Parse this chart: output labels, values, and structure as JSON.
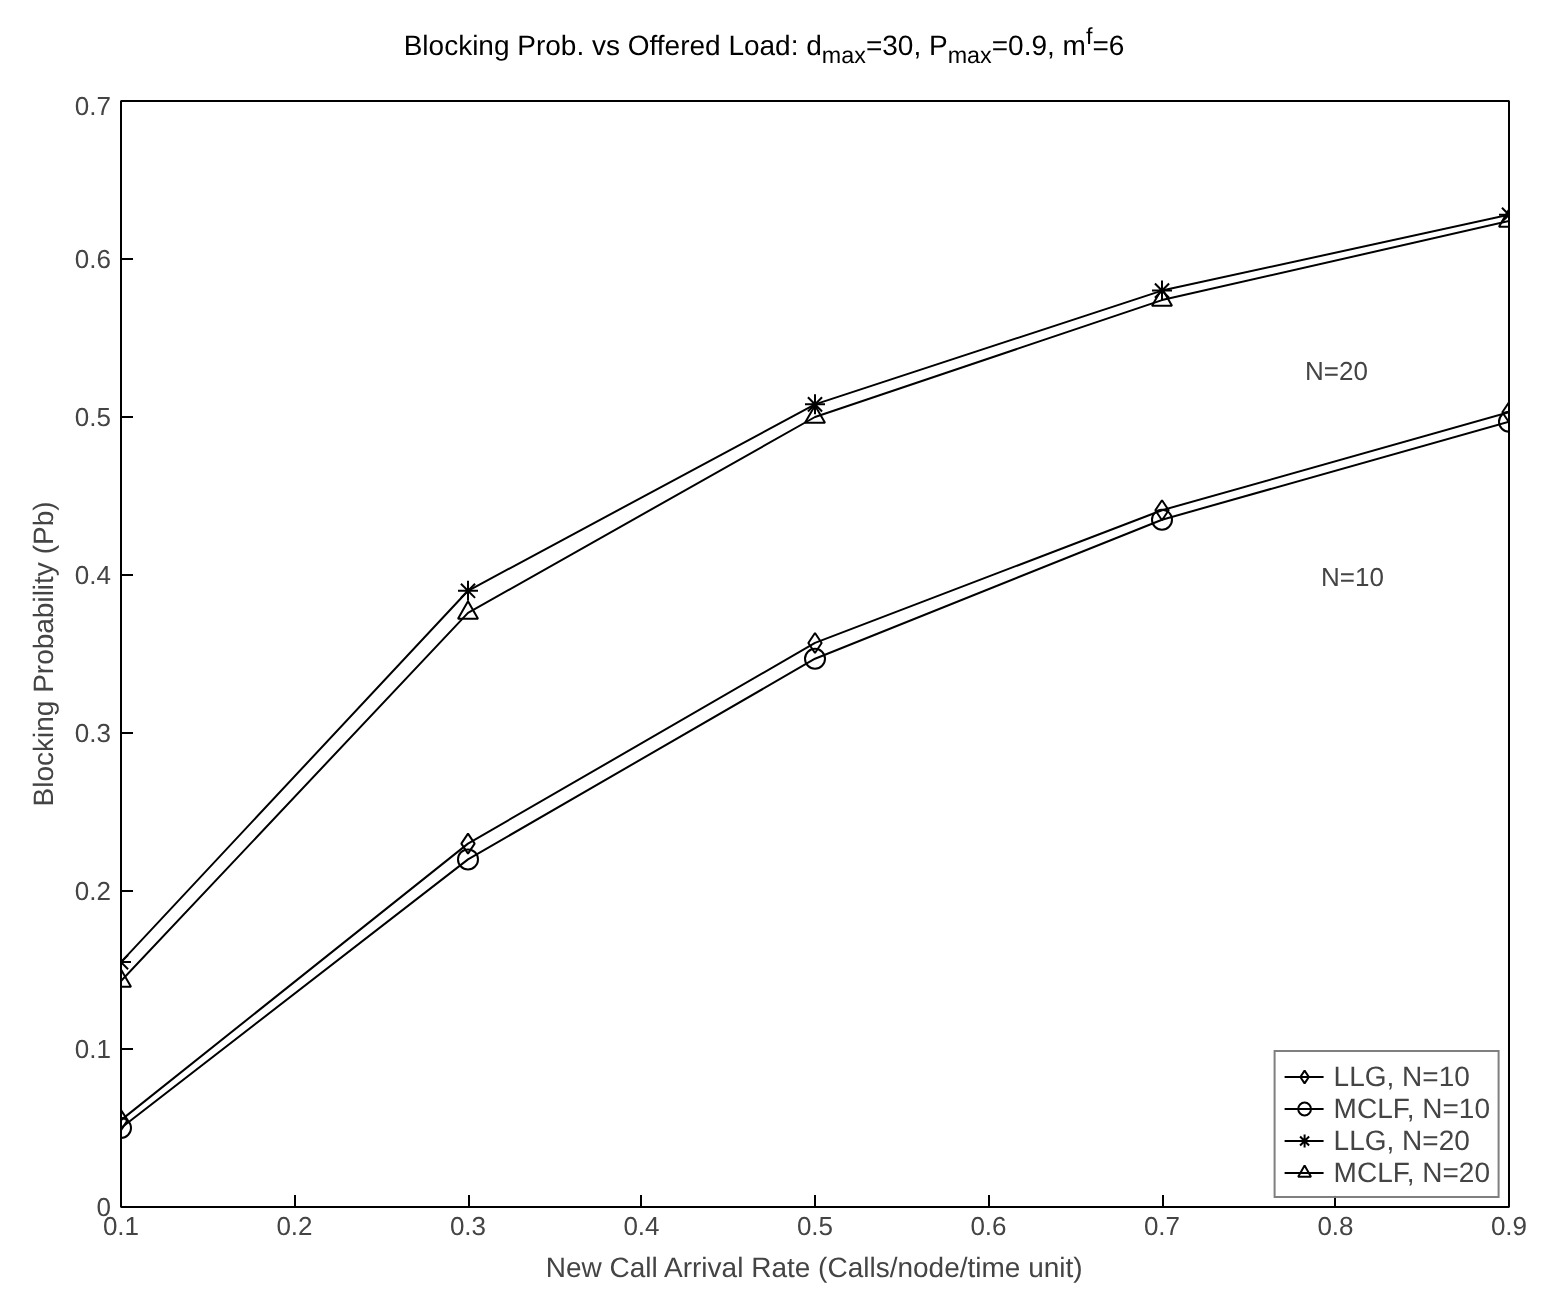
{
  "chart_data": {
    "type": "line",
    "title": "Blocking Prob. vs Offered Load: d$_{max}$=30, P$_{max}$=0.9, m$^{f}$=6",
    "xlabel": "New Call Arrival Rate (Calls/node/time unit)",
    "ylabel": "Blocking Probability (Pb)",
    "x": [
      0.1,
      0.3,
      0.5,
      0.7,
      0.9
    ],
    "series": [
      {
        "name": "LLG, N=10",
        "color": "#000000",
        "marker": "diamond",
        "values": [
          0.055,
          0.23,
          0.357,
          0.441,
          0.503
        ]
      },
      {
        "name": "MCLF, N=10",
        "color": "#000000",
        "marker": "circle",
        "values": [
          0.05,
          0.22,
          0.347,
          0.435,
          0.497
        ]
      },
      {
        "name": "LLG, N=20",
        "color": "#000000",
        "marker": "cross",
        "values": [
          0.155,
          0.39,
          0.508,
          0.58,
          0.628
        ]
      },
      {
        "name": "MCLF, N=20",
        "color": "#000000",
        "marker": "triangle",
        "values": [
          0.143,
          0.376,
          0.5,
          0.574,
          0.624
        ]
      }
    ],
    "annotations": [
      "N=20",
      "N=10"
    ],
    "xlim": [
      0.1,
      0.9
    ],
    "ylim": [
      0,
      0.7
    ],
    "xticks": [
      0.1,
      0.2,
      0.3,
      0.4,
      0.5,
      0.6,
      0.7,
      0.8,
      0.9
    ],
    "yticks": [
      0,
      0.1,
      0.2,
      0.3,
      0.4,
      0.5,
      0.6,
      0.7
    ],
    "grid": false,
    "legend": "bottom right",
    "line_style": "solid"
  }
}
